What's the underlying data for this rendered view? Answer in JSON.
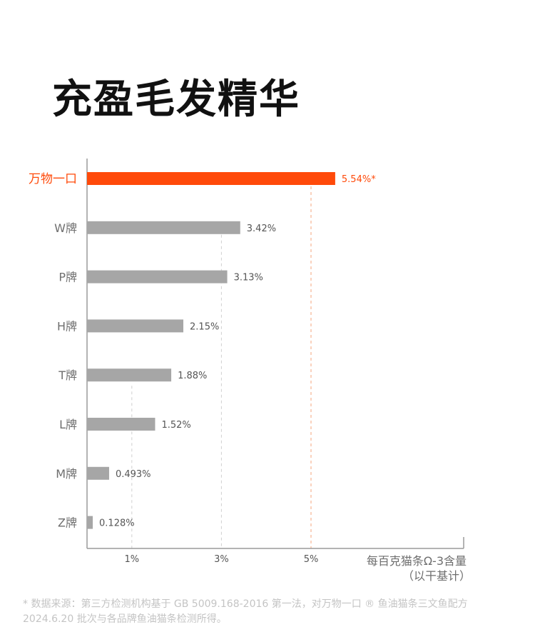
{
  "title": "充盈毛发精华",
  "footnote": "* 数据来源：第三方检测机构基于 GB 5009.168-2016 第一法，对万物一口 ® 鱼油猫条三文鱼配方 2024.6.20 批次与各品牌鱼油猫条检测所得。",
  "colors": {
    "highlight": "#ff4a0a",
    "bar": "#a6a6a6",
    "label": "#6e6e6e",
    "value": "#555555",
    "axis": "#9a9a9a",
    "gridline": "#cfcfcf",
    "highlight_gridline": "#f5a47c"
  },
  "chart_data": {
    "type": "bar",
    "orientation": "horizontal",
    "categories": [
      "万物一口",
      "W牌",
      "P牌",
      "H牌",
      "T牌",
      "L牌",
      "M牌",
      "Z牌"
    ],
    "values": [
      5.54,
      3.42,
      3.13,
      2.15,
      1.88,
      1.52,
      0.493,
      0.128
    ],
    "value_labels": [
      "5.54%*",
      "3.42%",
      "3.13%",
      "2.15%",
      "1.88%",
      "1.52%",
      "0.493%",
      "0.128%"
    ],
    "highlight_index": 0,
    "x_ticks": [
      1,
      3,
      5
    ],
    "x_tick_labels": [
      "1%",
      "3%",
      "5%"
    ],
    "xlim": [
      0,
      8.5
    ],
    "xlabel": [
      "每百克猫条Ω-3含量",
      "（以干基计）"
    ],
    "ylabel": "",
    "grid": "dashed vertical lines at ticks"
  }
}
